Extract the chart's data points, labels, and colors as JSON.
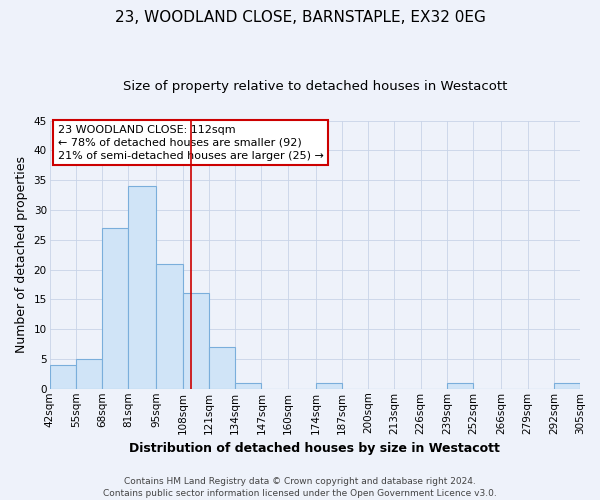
{
  "title": "23, WOODLAND CLOSE, BARNSTAPLE, EX32 0EG",
  "subtitle": "Size of property relative to detached houses in Westacott",
  "xlabel": "Distribution of detached houses by size in Westacott",
  "ylabel": "Number of detached properties",
  "bin_edges": [
    42,
    55,
    68,
    81,
    95,
    108,
    121,
    134,
    147,
    160,
    174,
    187,
    200,
    213,
    226,
    239,
    252,
    266,
    279,
    292,
    305
  ],
  "bin_labels": [
    "42sqm",
    "55sqm",
    "68sqm",
    "81sqm",
    "95sqm",
    "108sqm",
    "121sqm",
    "134sqm",
    "147sqm",
    "160sqm",
    "174sqm",
    "187sqm",
    "200sqm",
    "213sqm",
    "226sqm",
    "239sqm",
    "252sqm",
    "266sqm",
    "279sqm",
    "292sqm",
    "305sqm"
  ],
  "counts": [
    4,
    5,
    27,
    34,
    21,
    16,
    7,
    1,
    0,
    0,
    1,
    0,
    0,
    0,
    0,
    1,
    0,
    0,
    0,
    1
  ],
  "bar_color": "#d0e4f7",
  "bar_edge_color": "#7aaedb",
  "reference_line_x": 112,
  "reference_line_color": "#cc0000",
  "annotation_line1": "23 WOODLAND CLOSE: 112sqm",
  "annotation_line2": "← 78% of detached houses are smaller (92)",
  "annotation_line3": "21% of semi-detached houses are larger (25) →",
  "annotation_box_color": "#ffffff",
  "annotation_box_edge_color": "#cc0000",
  "ylim": [
    0,
    45
  ],
  "yticks": [
    0,
    5,
    10,
    15,
    20,
    25,
    30,
    35,
    40,
    45
  ],
  "grid_color": "#c8d4e8",
  "background_color": "#eef2fa",
  "footer_text": "Contains HM Land Registry data © Crown copyright and database right 2024.\nContains public sector information licensed under the Open Government Licence v3.0.",
  "title_fontsize": 11,
  "subtitle_fontsize": 9.5,
  "xlabel_fontsize": 9,
  "ylabel_fontsize": 9,
  "tick_fontsize": 7.5,
  "annotation_fontsize": 8,
  "footer_fontsize": 6.5
}
